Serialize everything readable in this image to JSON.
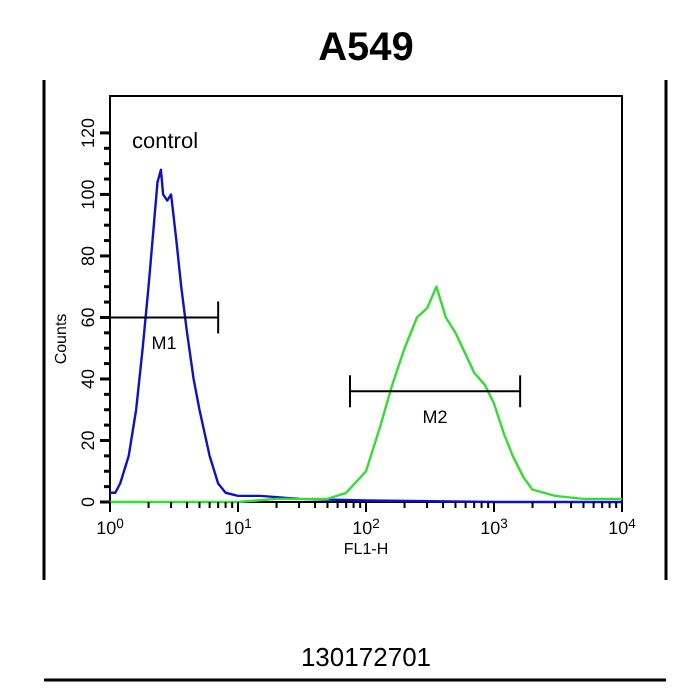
{
  "chart_data": {
    "type": "line",
    "title": "A549",
    "xlabel": "FL1-H",
    "ylabel": "Counts",
    "log": "x",
    "grid": false,
    "marker": "none",
    "line_style": "solid",
    "xlim": [
      1,
      10000
    ],
    "ylim": [
      0,
      132
    ],
    "xticks": [
      {
        "value": 1,
        "label": "10$^{0}$"
      },
      {
        "value": 2,
        "label": null
      },
      {
        "value": 3,
        "label": null
      },
      {
        "value": 4,
        "label": null
      },
      {
        "value": 5,
        "label": null
      },
      {
        "value": 6,
        "label": null
      },
      {
        "value": 7,
        "label": null
      },
      {
        "value": 8,
        "label": null
      },
      {
        "value": 9,
        "label": null
      },
      {
        "value": 10,
        "label": "10$^{1}$"
      },
      {
        "value": 20,
        "label": null
      },
      {
        "value": 30,
        "label": null
      },
      {
        "value": 40,
        "label": null
      },
      {
        "value": 50,
        "label": null
      },
      {
        "value": 60,
        "label": null
      },
      {
        "value": 70,
        "label": null
      },
      {
        "value": 80,
        "label": null
      },
      {
        "value": 90,
        "label": null
      },
      {
        "value": 100,
        "label": "10$^{2}$"
      },
      {
        "value": 200,
        "label": null
      },
      {
        "value": 300,
        "label": null
      },
      {
        "value": 400,
        "label": null
      },
      {
        "value": 500,
        "label": null
      },
      {
        "value": 600,
        "label": null
      },
      {
        "value": 700,
        "label": null
      },
      {
        "value": 800,
        "label": null
      },
      {
        "value": 900,
        "label": null
      },
      {
        "value": 1000,
        "label": "10$^{3}$"
      },
      {
        "value": 2000,
        "label": null
      },
      {
        "value": 3000,
        "label": null
      },
      {
        "value": 4000,
        "label": null
      },
      {
        "value": 5000,
        "label": null
      },
      {
        "value": 6000,
        "label": null
      },
      {
        "value": 7000,
        "label": null
      },
      {
        "value": 8000,
        "label": null
      },
      {
        "value": 9000,
        "label": null
      },
      {
        "value": 10000,
        "label": "10$^{4}$"
      }
    ],
    "yticks": [
      0,
      {
        "value": 5,
        "label": null
      },
      {
        "value": 10,
        "label": null
      },
      {
        "value": 15,
        "label": null
      },
      20,
      {
        "value": 25,
        "label": null
      },
      {
        "value": 30,
        "label": null
      },
      {
        "value": 35,
        "label": null
      },
      40,
      {
        "value": 45,
        "label": null
      },
      {
        "value": 50,
        "label": null
      },
      {
        "value": 55,
        "label": null
      },
      60,
      {
        "value": 65,
        "label": null
      },
      {
        "value": 70,
        "label": null
      },
      {
        "value": 75,
        "label": null
      },
      80,
      {
        "value": 85,
        "label": null
      },
      {
        "value": 90,
        "label": null
      },
      {
        "value": 95,
        "label": null
      },
      100,
      {
        "value": 105,
        "label": null
      },
      {
        "value": 110,
        "label": null
      },
      {
        "value": 115,
        "label": null
      },
      120
    ],
    "series": [
      {
        "color": "#1010c8",
        "x": [
          1,
          1.1,
          1.2,
          1.4,
          1.6,
          1.8,
          2.0,
          2.2,
          2.35,
          2.5,
          2.6,
          2.8,
          3.0,
          3.3,
          3.6,
          4.0,
          4.5,
          5,
          6,
          7,
          8,
          10,
          15,
          30,
          100,
          1000,
          10000
        ],
        "values": [
          3,
          3,
          6,
          15,
          30,
          50,
          70,
          90,
          104,
          108,
          100,
          98,
          100,
          85,
          70,
          55,
          40,
          30,
          15,
          6,
          3,
          2,
          2,
          1,
          0.5,
          0,
          0
        ]
      },
      {
        "color": "#33dd33",
        "x": [
          1,
          10,
          20,
          50,
          70,
          100,
          130,
          160,
          200,
          250,
          300,
          355,
          420,
          500,
          600,
          700,
          850,
          1000,
          1200,
          1400,
          1700,
          2000,
          3000,
          5000,
          10000
        ],
        "values": [
          0,
          0,
          1,
          1,
          3,
          10,
          25,
          38,
          50,
          60,
          63,
          70,
          60,
          55,
          48,
          42,
          38,
          32,
          22,
          15,
          8,
          4,
          2,
          1,
          1
        ]
      },
      {
        "name": "M1",
        "color": "#000000",
        "x": [
          1,
          7
        ],
        "values": [
          60,
          60
        ]
      },
      {
        "name": "M2",
        "color": "#000000",
        "x": [
          75,
          1600
        ],
        "values": [
          36,
          36
        ]
      }
    ],
    "annotations": [
      "control",
      "130172701"
    ]
  }
}
